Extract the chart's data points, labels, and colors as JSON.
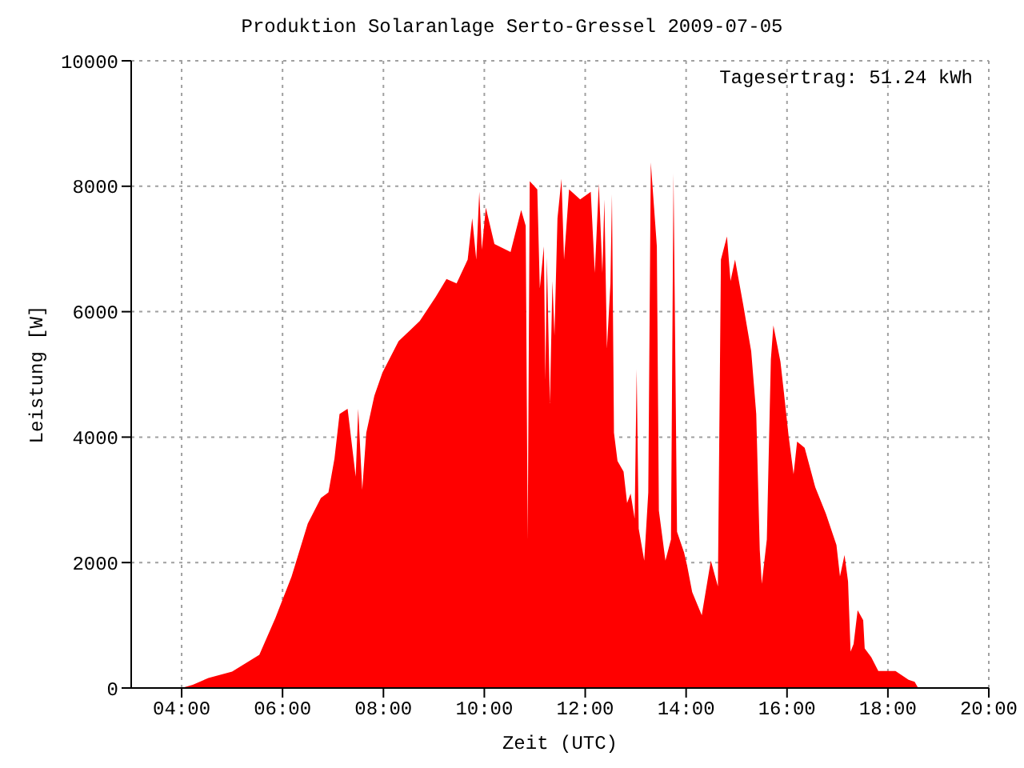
{
  "chart_data": {
    "type": "area",
    "title": "Produktion Solaranlage Serto-Gressel 2009-07-05",
    "xlabel": "Zeit (UTC)",
    "ylabel": "Leistung [W]",
    "annotations": [
      "Tagesertrag: 51.24 kWh"
    ],
    "xlim": [
      3,
      20
    ],
    "xticks": [
      {
        "value": 4,
        "label": "04:00"
      },
      {
        "value": 6,
        "label": "06:00"
      },
      {
        "value": 8,
        "label": "08:00"
      },
      {
        "value": 10,
        "label": "10:00"
      },
      {
        "value": 12,
        "label": "12:00"
      },
      {
        "value": 14,
        "label": "14:00"
      },
      {
        "value": 16,
        "label": "16:00"
      },
      {
        "value": 18,
        "label": "18:00"
      },
      {
        "value": 20,
        "label": "20:00"
      }
    ],
    "ylim": [
      0,
      10000
    ],
    "yticks": [
      0,
      2000,
      4000,
      6000,
      8000,
      10000
    ],
    "grid": true,
    "legend": false,
    "x": [
      4.0,
      4.22,
      4.53,
      5.0,
      5.54,
      5.86,
      6.18,
      6.5,
      6.76,
      6.91,
      7.03,
      7.13,
      7.29,
      7.45,
      7.5,
      7.58,
      7.66,
      7.82,
      7.98,
      8.3,
      8.72,
      9.04,
      9.25,
      9.45,
      9.67,
      9.76,
      9.84,
      9.9,
      9.95,
      10.03,
      10.2,
      10.52,
      10.73,
      10.82,
      10.86,
      10.9,
      11.05,
      11.1,
      11.18,
      11.21,
      11.24,
      11.3,
      11.35,
      11.39,
      11.45,
      11.53,
      11.58,
      11.68,
      11.9,
      12.11,
      12.19,
      12.27,
      12.34,
      12.38,
      12.43,
      12.5,
      12.53,
      12.57,
      12.64,
      12.76,
      12.83,
      12.9,
      12.98,
      13.02,
      13.06,
      13.17,
      13.25,
      13.3,
      13.42,
      13.46,
      13.59,
      13.7,
      13.75,
      13.82,
      13.96,
      14.02,
      14.12,
      14.31,
      14.49,
      14.63,
      14.69,
      14.81,
      14.88,
      14.97,
      15.13,
      15.29,
      15.39,
      15.46,
      15.5,
      15.6,
      15.68,
      15.73,
      15.87,
      15.94,
      16.03,
      16.13,
      16.2,
      16.35,
      16.56,
      16.77,
      16.98,
      17.05,
      17.14,
      17.21,
      17.26,
      17.32,
      17.4,
      17.51,
      17.54,
      17.67,
      17.81,
      18.15,
      18.41,
      18.53,
      18.6
    ],
    "series": [
      {
        "color": "#ff0000",
        "values": [
          0,
          50,
          160,
          260,
          530,
          1120,
          1780,
          2620,
          3030,
          3120,
          3660,
          4370,
          4450,
          3370,
          4450,
          3160,
          4070,
          4660,
          5030,
          5530,
          5850,
          6240,
          6520,
          6450,
          6830,
          7490,
          6830,
          7910,
          6990,
          7660,
          7080,
          6950,
          7620,
          7370,
          2370,
          8080,
          7950,
          6370,
          7040,
          4910,
          6870,
          4540,
          6490,
          5620,
          7490,
          8120,
          6830,
          7950,
          7790,
          7910,
          6620,
          8040,
          6620,
          7790,
          5410,
          6450,
          7870,
          4070,
          3620,
          3450,
          2950,
          3100,
          2700,
          5080,
          2540,
          2030,
          3120,
          8380,
          7040,
          2830,
          2030,
          2370,
          8200,
          2490,
          2160,
          1950,
          1530,
          1160,
          2030,
          1620,
          6830,
          7200,
          6490,
          6830,
          6120,
          5370,
          4370,
          2200,
          1660,
          2370,
          5240,
          5780,
          5200,
          4700,
          4030,
          3410,
          3930,
          3830,
          3200,
          2780,
          2280,
          1780,
          2120,
          1700,
          580,
          700,
          1240,
          1080,
          630,
          490,
          270,
          270,
          130,
          100,
          0
        ]
      }
    ]
  }
}
